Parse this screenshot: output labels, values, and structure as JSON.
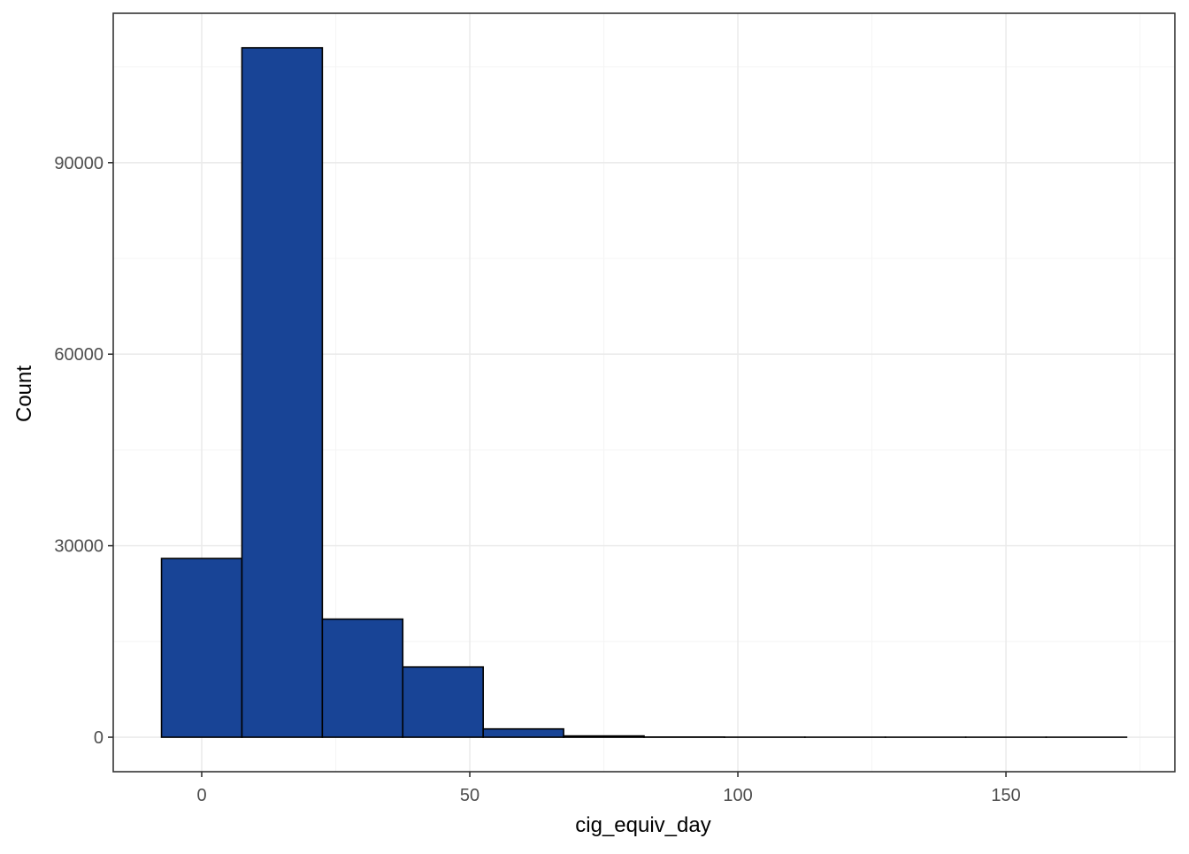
{
  "chart_data": {
    "type": "bar",
    "subtype": "histogram",
    "title": "",
    "xlabel": "cig_equiv_day",
    "ylabel": "Count",
    "bins": [
      {
        "x_start": -7.5,
        "x_end": 7.5,
        "count": 28000
      },
      {
        "x_start": 7.5,
        "x_end": 22.5,
        "count": 108000
      },
      {
        "x_start": 22.5,
        "x_end": 37.5,
        "count": 18500
      },
      {
        "x_start": 37.5,
        "x_end": 52.5,
        "count": 11000
      },
      {
        "x_start": 52.5,
        "x_end": 67.5,
        "count": 1300
      },
      {
        "x_start": 67.5,
        "x_end": 82.5,
        "count": 200
      },
      {
        "x_start": 82.5,
        "x_end": 97.5,
        "count": 30
      },
      {
        "x_start": 97.5,
        "x_end": 112.5,
        "count": 10
      },
      {
        "x_start": 112.5,
        "x_end": 127.5,
        "count": 5
      },
      {
        "x_start": 127.5,
        "x_end": 142.5,
        "count": 2
      },
      {
        "x_start": 142.5,
        "x_end": 157.5,
        "count": 1
      },
      {
        "x_start": 157.5,
        "x_end": 172.5,
        "count": 1
      }
    ],
    "x_ticks": [
      0,
      50,
      100,
      150
    ],
    "y_ticks": [
      0,
      30000,
      60000,
      90000
    ],
    "xlim": [
      -16.5,
      181.5
    ],
    "ylim": [
      -5400,
      113400
    ],
    "grid": true,
    "legend": "none",
    "colors": {
      "bar_fill": "#184496",
      "bar_stroke": "#000000",
      "grid_major": "#ebebeb",
      "grid_minor": "#f5f5f5",
      "panel_border": "#333333",
      "tick_text": "#4d4d4d",
      "axis_title": "#000000"
    }
  }
}
